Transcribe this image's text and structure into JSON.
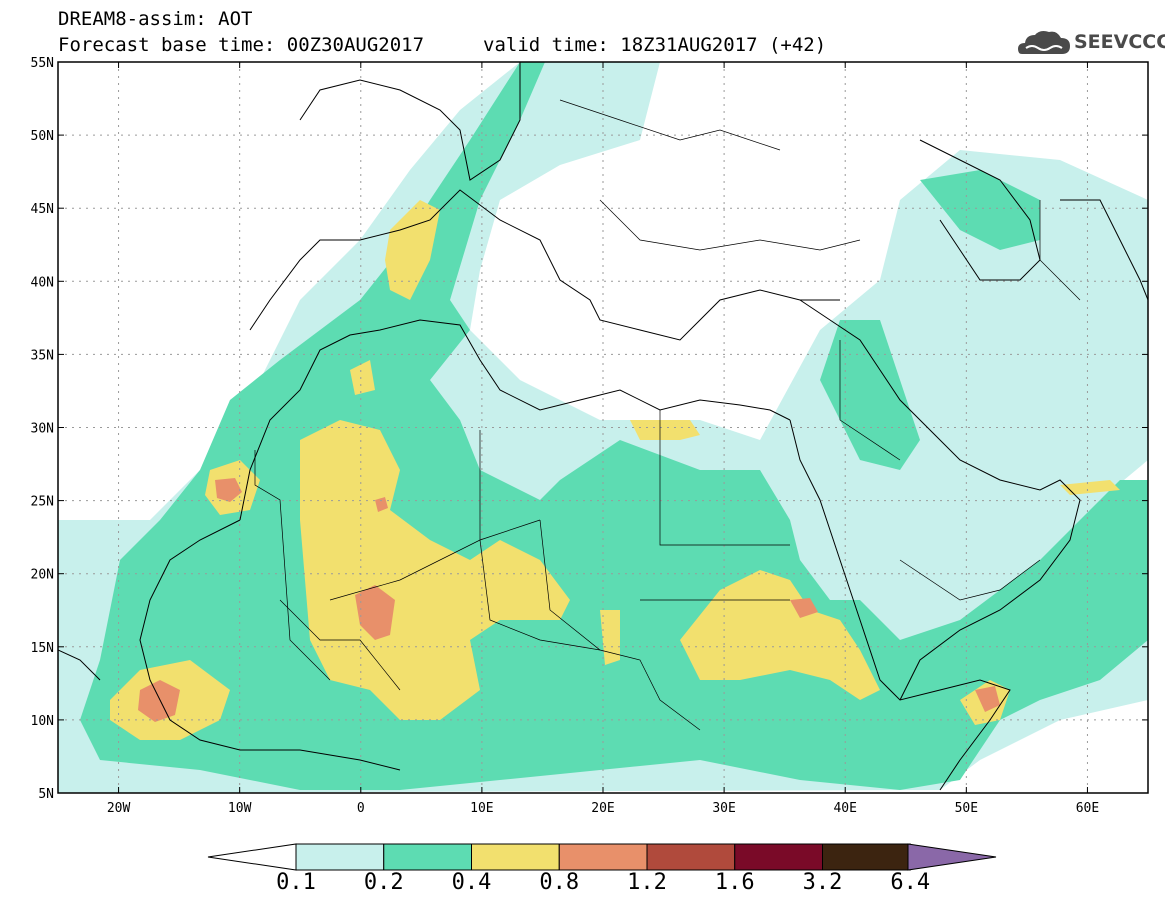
{
  "title": {
    "line1": "DREAM8-assim: AOT",
    "line2": "Forecast base time: 00Z30AUG2017",
    "valid": "valid time: 18Z31AUG2017 (+42)"
  },
  "logo": {
    "text": "SEEVCCC",
    "icon": "cloud-icon",
    "color": "#4a4a4a"
  },
  "map": {
    "lon_range": [
      -25,
      65
    ],
    "lat_range": [
      5,
      55
    ],
    "lon_ticks": [
      "20W",
      "10W",
      "0",
      "10E",
      "20E",
      "30E",
      "40E",
      "50E",
      "60E"
    ],
    "lat_ticks": [
      "55N",
      "50N",
      "45N",
      "40N",
      "35N",
      "30N",
      "25N",
      "20N",
      "15N",
      "10N",
      "5N"
    ],
    "grid": true
  },
  "colorbar": {
    "labels": [
      "0.1",
      "0.2",
      "0.4",
      "0.8",
      "1.2",
      "1.6",
      "3.2",
      "6.4"
    ],
    "colors": [
      "#c8f0ec",
      "#5ddcb2",
      "#f2e06e",
      "#e8906a",
      "#b04a3c",
      "#7a0a28",
      "#3c2410",
      "#8a68a8"
    ],
    "under_color": "#ffffff"
  }
}
